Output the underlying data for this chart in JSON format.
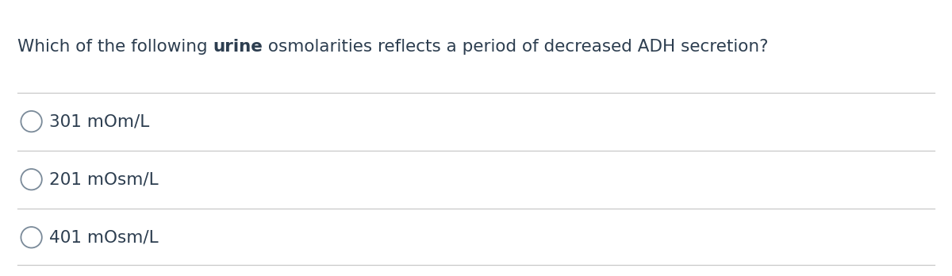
{
  "question_parts": [
    {
      "text": "Which of the following ",
      "bold": false
    },
    {
      "text": "urine",
      "bold": true
    },
    {
      "text": " osmolarities reflects a period of decreased ADH secretion?",
      "bold": false
    }
  ],
  "options": [
    "301 mOm/L",
    "201 mOsm/L",
    "401 mOsm/L"
  ],
  "text_color": "#2d3e50",
  "line_color": "#c8c8c8",
  "background_color": "#ffffff",
  "question_fontsize": 15.5,
  "option_fontsize": 15.5,
  "circle_color": "#7a8a99",
  "fig_width": 12.0,
  "fig_height": 3.48
}
